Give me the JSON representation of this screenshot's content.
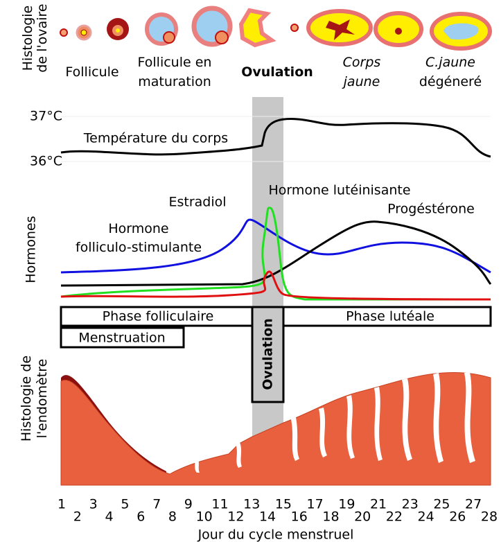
{
  "ovary": {
    "label": [
      "Histologie",
      "de l'ovaire"
    ],
    "stages": [
      [
        "Follicule"
      ],
      [
        "Follicule en",
        "maturation"
      ],
      [
        "Ovulation"
      ],
      [
        "Corps",
        "jaune"
      ],
      [
        "C.jaune",
        "dégéneré"
      ]
    ]
  },
  "temperature": {
    "high": "37°C",
    "low": "36°C",
    "label": "Température du corps"
  },
  "hormones": {
    "label": "Hormones",
    "estradiol": "Estradiol",
    "lh": "Hormone lutéinisante",
    "progesterone": "Progéstérone",
    "fsh": [
      "Hormone",
      "folliculo-stimulante"
    ]
  },
  "phases": {
    "follicular": "Phase folliculaire",
    "luteal": "Phase lutéale",
    "menstruation": "Menstruation",
    "ovulation": "Ovulation"
  },
  "endometrium": {
    "label": [
      "Histologie de",
      "l'endomètre"
    ]
  },
  "days": [
    1,
    2,
    3,
    4,
    5,
    6,
    7,
    8,
    9,
    10,
    11,
    12,
    13,
    14,
    15,
    16,
    17,
    18,
    19,
    20,
    21,
    22,
    23,
    24,
    25,
    26,
    27,
    28
  ],
  "xlabel": "Jour du cycle menstruel"
}
